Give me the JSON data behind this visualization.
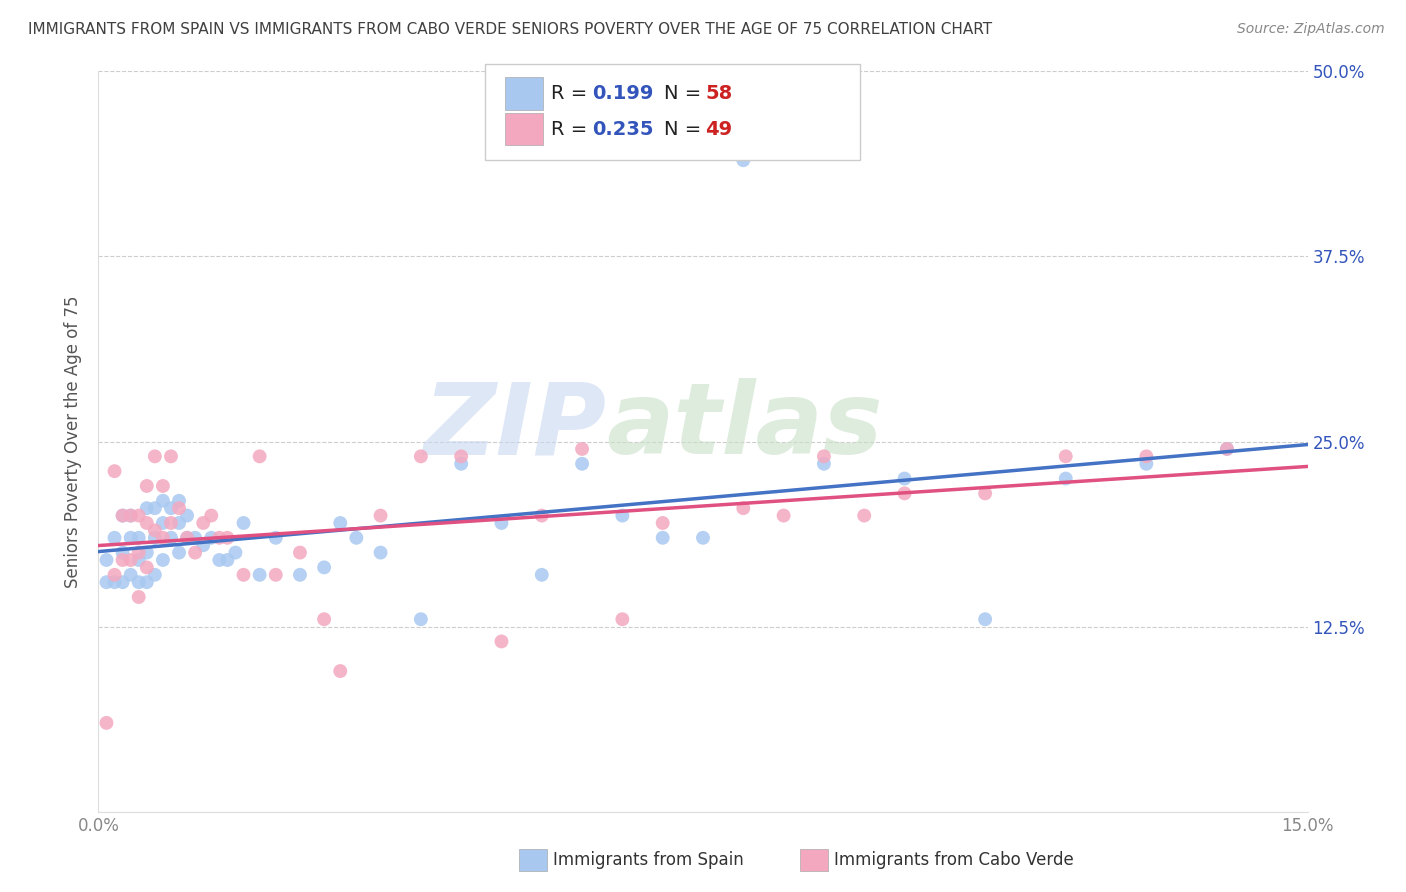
{
  "title": "IMMIGRANTS FROM SPAIN VS IMMIGRANTS FROM CABO VERDE SENIORS POVERTY OVER THE AGE OF 75 CORRELATION CHART",
  "source": "Source: ZipAtlas.com",
  "ylabel": "Seniors Poverty Over the Age of 75",
  "xlim": [
    0.0,
    0.15
  ],
  "ylim": [
    0.0,
    0.5
  ],
  "yticks": [
    0.0,
    0.125,
    0.25,
    0.375,
    0.5
  ],
  "ytick_labels": [
    "",
    "12.5%",
    "25.0%",
    "37.5%",
    "50.0%"
  ],
  "xticks": [
    0.0,
    0.05,
    0.1,
    0.15
  ],
  "xtick_labels": [
    "0.0%",
    "",
    "",
    "15.0%"
  ],
  "watermark_zip": "ZIP",
  "watermark_atlas": "atlas",
  "spain_R": "0.199",
  "spain_N": "58",
  "cabo_verde_R": "0.235",
  "cabo_verde_N": "49",
  "spain_color": "#a8c8f0",
  "cabo_verde_color": "#f4a8c0",
  "spain_line_color": "#4472c4",
  "cabo_verde_line_color": "#e05080",
  "background_color": "#ffffff",
  "grid_color": "#c8c8c8",
  "title_color": "#404040",
  "ylabel_color": "#555555",
  "tick_color_right": "#3355bb",
  "tick_color_x": "#888888",
  "legend_R_color": "#3355bb",
  "legend_N_color": "#cc2222",
  "spain_scatter_x": [
    0.001,
    0.001,
    0.002,
    0.002,
    0.003,
    0.003,
    0.003,
    0.004,
    0.004,
    0.004,
    0.005,
    0.005,
    0.005,
    0.006,
    0.006,
    0.006,
    0.007,
    0.007,
    0.007,
    0.008,
    0.008,
    0.008,
    0.009,
    0.009,
    0.01,
    0.01,
    0.01,
    0.011,
    0.011,
    0.012,
    0.013,
    0.014,
    0.015,
    0.016,
    0.017,
    0.018,
    0.02,
    0.022,
    0.025,
    0.028,
    0.03,
    0.032,
    0.035,
    0.04,
    0.045,
    0.05,
    0.055,
    0.06,
    0.065,
    0.07,
    0.075,
    0.08,
    0.09,
    0.1,
    0.11,
    0.12,
    0.13,
    0.14
  ],
  "spain_scatter_y": [
    0.155,
    0.17,
    0.185,
    0.155,
    0.2,
    0.175,
    0.155,
    0.2,
    0.185,
    0.16,
    0.185,
    0.17,
    0.155,
    0.205,
    0.175,
    0.155,
    0.205,
    0.185,
    0.16,
    0.21,
    0.195,
    0.17,
    0.205,
    0.185,
    0.21,
    0.195,
    0.175,
    0.2,
    0.185,
    0.185,
    0.18,
    0.185,
    0.17,
    0.17,
    0.175,
    0.195,
    0.16,
    0.185,
    0.16,
    0.165,
    0.195,
    0.185,
    0.175,
    0.13,
    0.235,
    0.195,
    0.16,
    0.235,
    0.2,
    0.185,
    0.185,
    0.44,
    0.235,
    0.225,
    0.13,
    0.225,
    0.235,
    0.245
  ],
  "cabo_verde_scatter_x": [
    0.001,
    0.002,
    0.002,
    0.003,
    0.003,
    0.004,
    0.004,
    0.005,
    0.005,
    0.005,
    0.006,
    0.006,
    0.006,
    0.007,
    0.007,
    0.008,
    0.008,
    0.009,
    0.009,
    0.01,
    0.011,
    0.012,
    0.013,
    0.014,
    0.015,
    0.016,
    0.018,
    0.02,
    0.022,
    0.025,
    0.028,
    0.03,
    0.035,
    0.04,
    0.045,
    0.05,
    0.055,
    0.06,
    0.065,
    0.07,
    0.08,
    0.085,
    0.09,
    0.095,
    0.1,
    0.11,
    0.12,
    0.13,
    0.14
  ],
  "cabo_verde_scatter_y": [
    0.06,
    0.23,
    0.16,
    0.2,
    0.17,
    0.2,
    0.17,
    0.2,
    0.175,
    0.145,
    0.22,
    0.195,
    0.165,
    0.24,
    0.19,
    0.22,
    0.185,
    0.24,
    0.195,
    0.205,
    0.185,
    0.175,
    0.195,
    0.2,
    0.185,
    0.185,
    0.16,
    0.24,
    0.16,
    0.175,
    0.13,
    0.095,
    0.2,
    0.24,
    0.24,
    0.115,
    0.2,
    0.245,
    0.13,
    0.195,
    0.205,
    0.2,
    0.24,
    0.2,
    0.215,
    0.215,
    0.24,
    0.24,
    0.245
  ]
}
